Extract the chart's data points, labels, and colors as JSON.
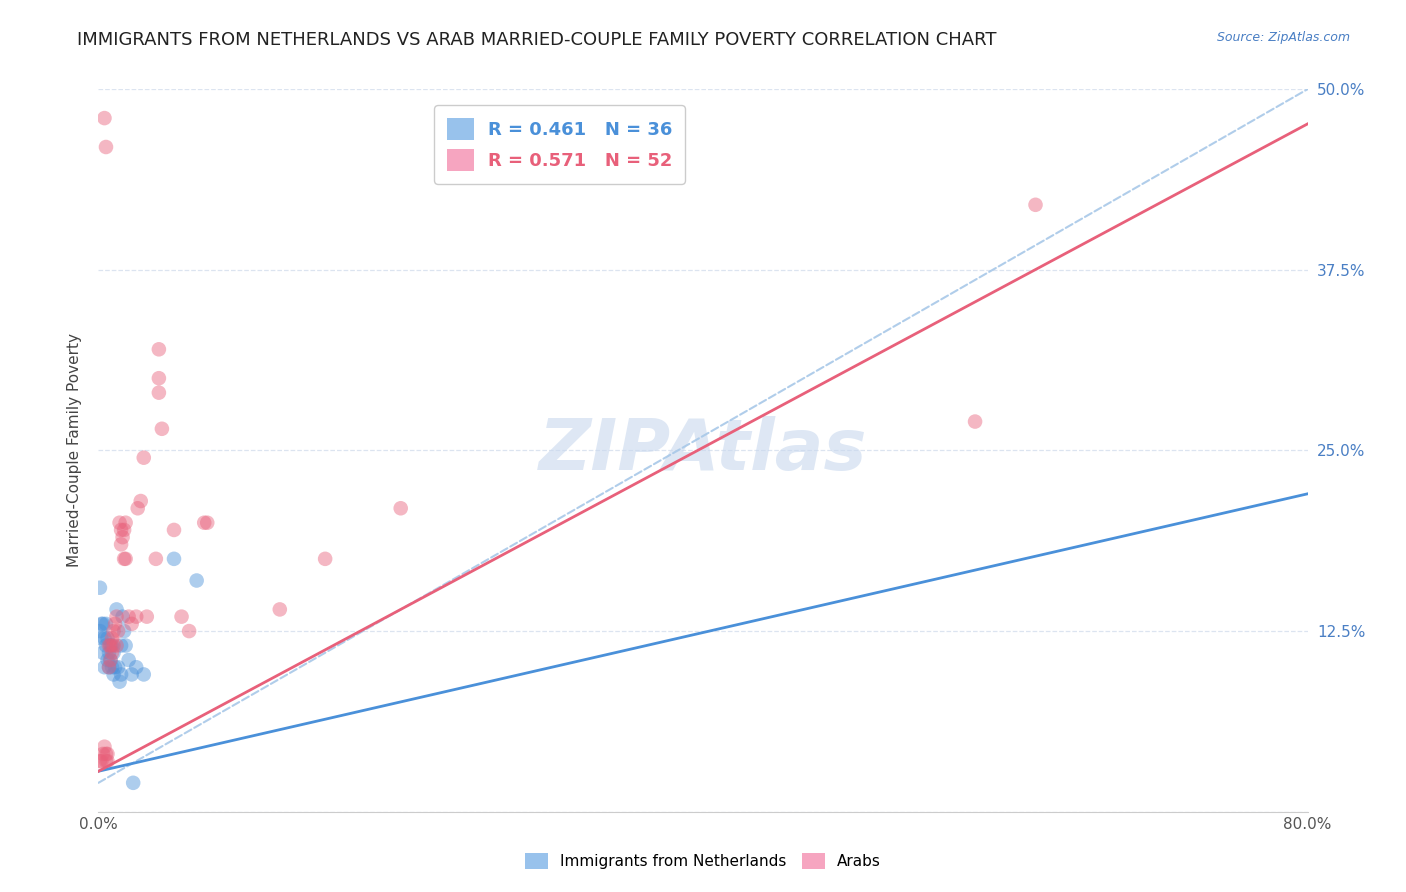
{
  "title": "IMMIGRANTS FROM NETHERLANDS VS ARAB MARRIED-COUPLE FAMILY POVERTY CORRELATION CHART",
  "source": "Source: ZipAtlas.com",
  "ylabel": "Married-Couple Family Poverty",
  "watermark": "ZIPAtlas",
  "xlim": [
    0.0,
    0.8
  ],
  "ylim": [
    0.0,
    0.5
  ],
  "blue_scatter": [
    [
      0.001,
      0.155
    ],
    [
      0.001,
      0.125
    ],
    [
      0.002,
      0.13
    ],
    [
      0.002,
      0.12
    ],
    [
      0.003,
      0.13
    ],
    [
      0.003,
      0.11
    ],
    [
      0.004,
      0.12
    ],
    [
      0.004,
      0.1
    ],
    [
      0.005,
      0.13
    ],
    [
      0.005,
      0.115
    ],
    [
      0.006,
      0.12
    ],
    [
      0.006,
      0.105
    ],
    [
      0.007,
      0.11
    ],
    [
      0.007,
      0.1
    ],
    [
      0.008,
      0.115
    ],
    [
      0.008,
      0.105
    ],
    [
      0.009,
      0.1
    ],
    [
      0.009,
      0.115
    ],
    [
      0.01,
      0.11
    ],
    [
      0.01,
      0.095
    ],
    [
      0.011,
      0.1
    ],
    [
      0.012,
      0.14
    ],
    [
      0.013,
      0.1
    ],
    [
      0.014,
      0.09
    ],
    [
      0.015,
      0.115
    ],
    [
      0.015,
      0.095
    ],
    [
      0.016,
      0.135
    ],
    [
      0.017,
      0.125
    ],
    [
      0.018,
      0.115
    ],
    [
      0.02,
      0.105
    ],
    [
      0.022,
      0.095
    ],
    [
      0.023,
      0.02
    ],
    [
      0.025,
      0.1
    ],
    [
      0.03,
      0.095
    ],
    [
      0.05,
      0.175
    ],
    [
      0.065,
      0.16
    ]
  ],
  "pink_scatter": [
    [
      0.001,
      0.035
    ],
    [
      0.002,
      0.035
    ],
    [
      0.003,
      0.04
    ],
    [
      0.004,
      0.045
    ],
    [
      0.005,
      0.04
    ],
    [
      0.005,
      0.035
    ],
    [
      0.006,
      0.04
    ],
    [
      0.006,
      0.035
    ],
    [
      0.007,
      0.115
    ],
    [
      0.007,
      0.1
    ],
    [
      0.008,
      0.115
    ],
    [
      0.008,
      0.105
    ],
    [
      0.009,
      0.12
    ],
    [
      0.009,
      0.11
    ],
    [
      0.01,
      0.125
    ],
    [
      0.01,
      0.115
    ],
    [
      0.011,
      0.13
    ],
    [
      0.012,
      0.135
    ],
    [
      0.012,
      0.115
    ],
    [
      0.013,
      0.125
    ],
    [
      0.014,
      0.2
    ],
    [
      0.015,
      0.195
    ],
    [
      0.015,
      0.185
    ],
    [
      0.016,
      0.19
    ],
    [
      0.017,
      0.195
    ],
    [
      0.017,
      0.175
    ],
    [
      0.018,
      0.2
    ],
    [
      0.018,
      0.175
    ],
    [
      0.02,
      0.135
    ],
    [
      0.022,
      0.13
    ],
    [
      0.025,
      0.135
    ],
    [
      0.026,
      0.21
    ],
    [
      0.028,
      0.215
    ],
    [
      0.03,
      0.245
    ],
    [
      0.032,
      0.135
    ],
    [
      0.038,
      0.175
    ],
    [
      0.04,
      0.29
    ],
    [
      0.04,
      0.32
    ],
    [
      0.042,
      0.265
    ],
    [
      0.05,
      0.195
    ],
    [
      0.055,
      0.135
    ],
    [
      0.06,
      0.125
    ],
    [
      0.07,
      0.2
    ],
    [
      0.072,
      0.2
    ],
    [
      0.12,
      0.14
    ],
    [
      0.15,
      0.175
    ],
    [
      0.2,
      0.21
    ],
    [
      0.58,
      0.27
    ],
    [
      0.62,
      0.42
    ],
    [
      0.004,
      0.48
    ],
    [
      0.005,
      0.46
    ],
    [
      0.04,
      0.3
    ]
  ],
  "blue_line_color": "#4a90d9",
  "pink_line_color": "#e8607a",
  "dashed_line_color": "#a8c8e8",
  "background_color": "#ffffff",
  "grid_color": "#dce4f0",
  "title_fontsize": 13,
  "axis_label_fontsize": 11,
  "tick_fontsize": 11,
  "legend_fontsize": 13,
  "watermark_color": "#c8d8ee",
  "watermark_fontsize": 52,
  "blue_intercept": 0.028,
  "blue_slope": 0.24,
  "pink_intercept": 0.028,
  "pink_slope": 0.56
}
